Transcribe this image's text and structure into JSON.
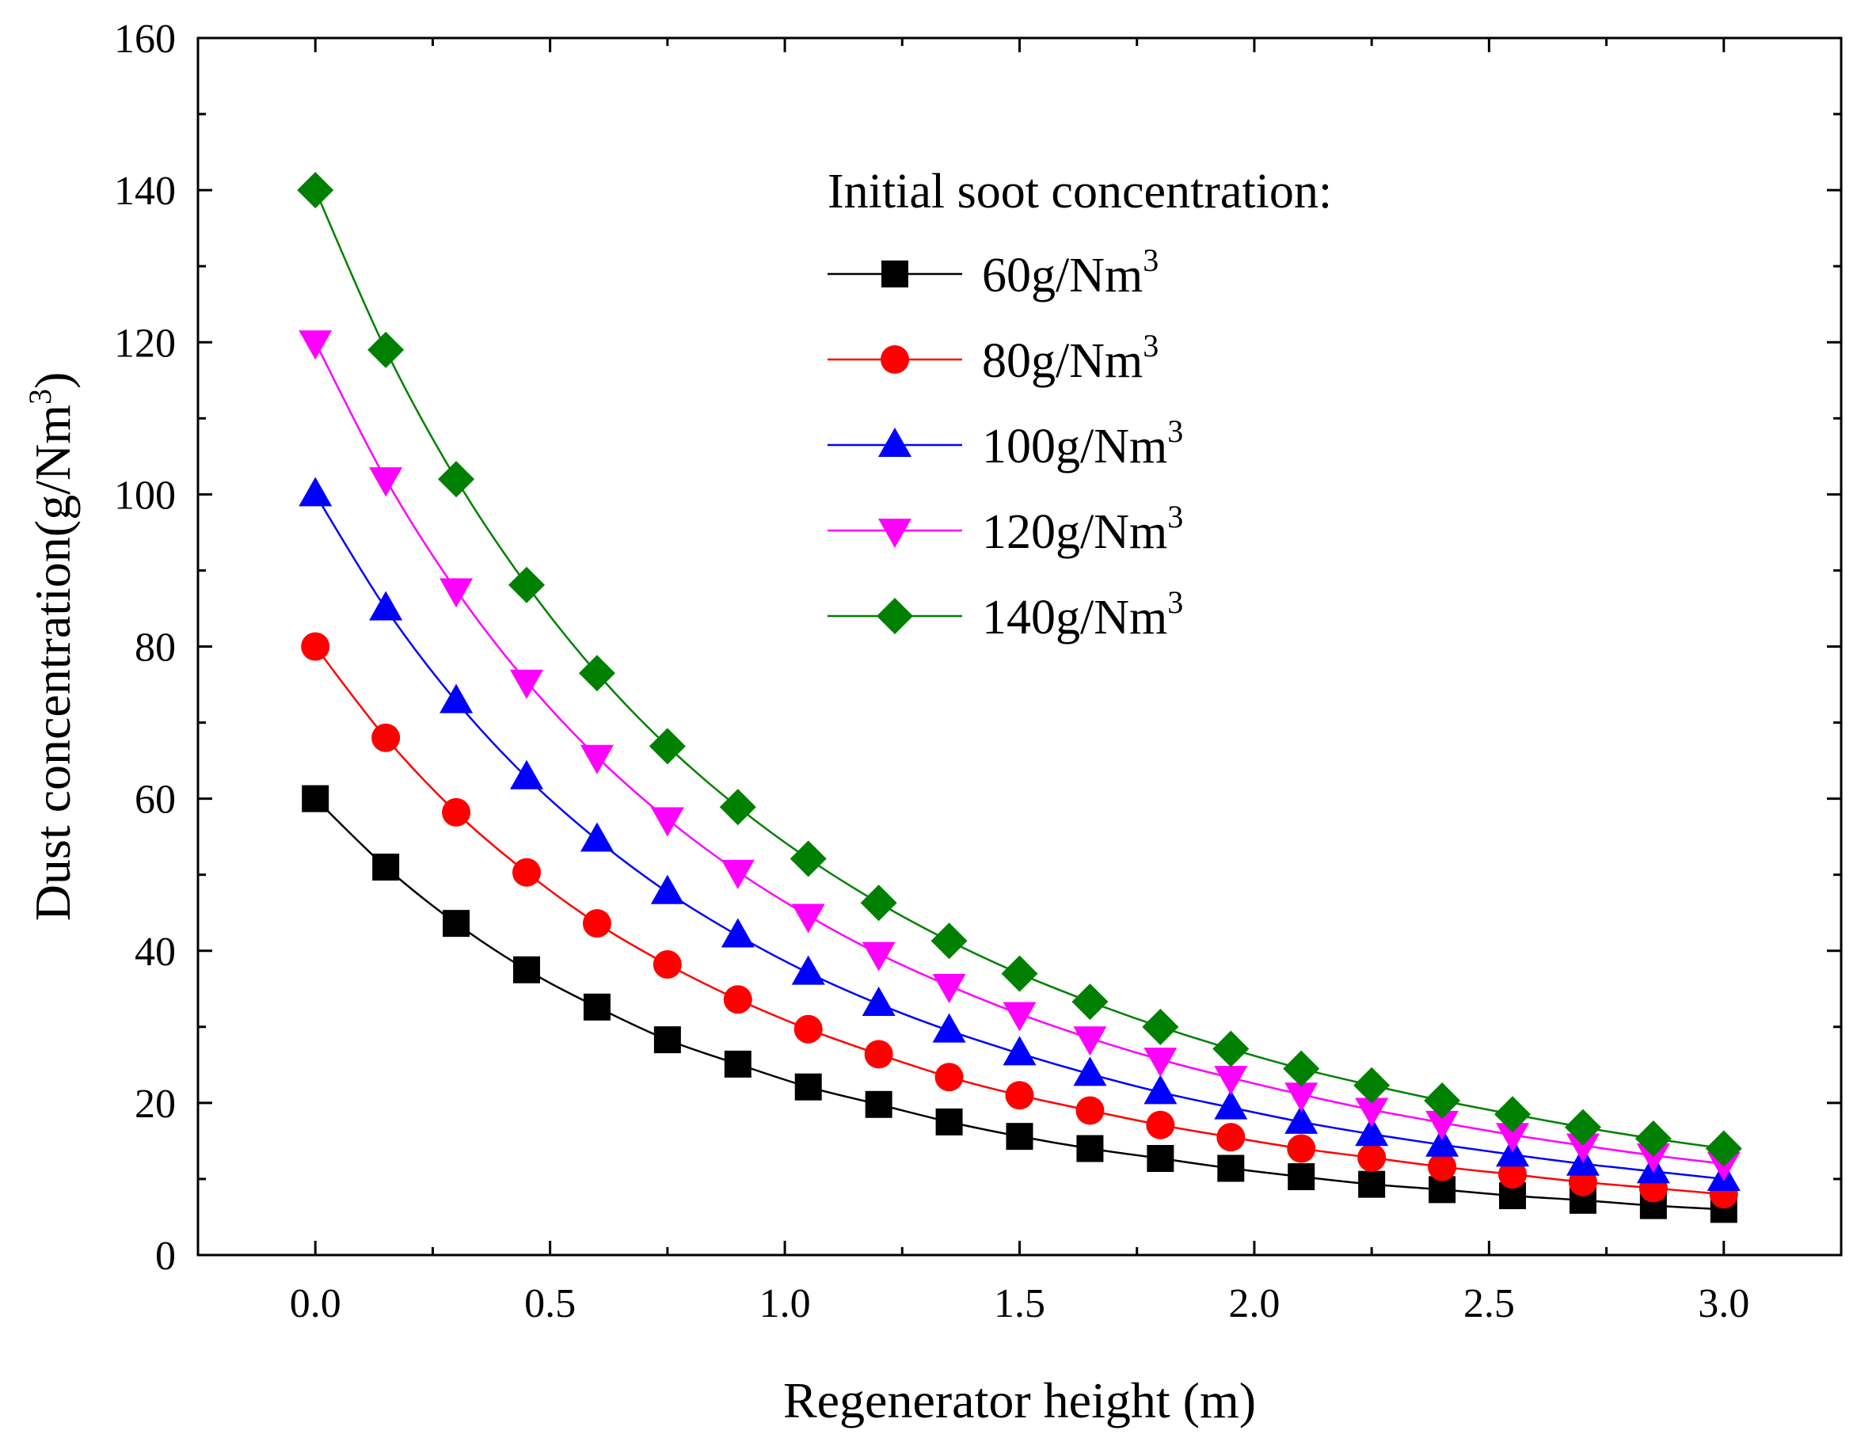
{
  "chart_data": {
    "type": "line",
    "title": "",
    "xlabel": "Regenerator height (m)",
    "ylabel_main": "Dust concentration(g/Nm",
    "ylabel_sup": "3",
    "ylabel_end": ")",
    "xlim": [
      -0.25,
      3.25
    ],
    "ylim": [
      0,
      160
    ],
    "x_ticks": [
      "0.0",
      "0.5",
      "1.0",
      "1.5",
      "2.0",
      "2.5",
      "3.0"
    ],
    "x_tick_values": [
      0,
      0.5,
      1.0,
      1.5,
      2.0,
      2.5,
      3.0
    ],
    "y_ticks": [
      "0",
      "20",
      "40",
      "60",
      "80",
      "100",
      "120",
      "140",
      "160"
    ],
    "y_tick_values": [
      0,
      20,
      40,
      60,
      80,
      100,
      120,
      140,
      160
    ],
    "x": [
      0,
      0.15,
      0.3,
      0.45,
      0.6,
      0.75,
      0.9,
      1.05,
      1.2,
      1.35,
      1.5,
      1.65,
      1.8,
      1.95,
      2.1,
      2.25,
      2.4,
      2.55,
      2.7,
      2.85,
      3.0
    ],
    "legend_title": "Initial soot concentration:",
    "legend_position": "top-right",
    "series": [
      {
        "name": "60g/Nm",
        "sup": "3",
        "color": "#000000",
        "marker": "square",
        "values": [
          60,
          51,
          43.6,
          37.5,
          32.6,
          28.3,
          25.1,
          22.1,
          19.8,
          17.5,
          15.6,
          14.0,
          12.7,
          11.4,
          10.3,
          9.3,
          8.6,
          7.8,
          7.2,
          6.5,
          6.0
        ]
      },
      {
        "name": "80g/Nm",
        "sup": "3",
        "color": "#ff0000",
        "marker": "circle",
        "values": [
          80,
          68,
          58.2,
          50.3,
          43.6,
          38.2,
          33.6,
          29.7,
          26.4,
          23.4,
          21.0,
          19.0,
          17.1,
          15.5,
          14.0,
          12.8,
          11.6,
          10.6,
          9.6,
          8.8,
          8.0
        ]
      },
      {
        "name": "100g/Nm",
        "sup": "3",
        "color": "#0000ff",
        "marker": "triangle-up",
        "values": [
          100,
          85,
          72.8,
          62.8,
          54.6,
          47.7,
          42.0,
          37.1,
          33.0,
          29.5,
          26.5,
          23.8,
          21.4,
          19.4,
          17.5,
          15.9,
          14.5,
          13.2,
          12.0,
          11.0,
          10.0
        ]
      },
      {
        "name": "120g/Nm",
        "sup": "3",
        "color": "#ff00ff",
        "marker": "triangle-down",
        "values": [
          120,
          102,
          87.4,
          75.4,
          65.5,
          57.3,
          50.4,
          44.6,
          39.6,
          35.4,
          31.7,
          28.5,
          25.7,
          23.3,
          21.1,
          19.1,
          17.4,
          15.8,
          14.4,
          13.1,
          12.0
        ]
      },
      {
        "name": "140g/Nm",
        "sup": "3",
        "color": "#008000",
        "marker": "diamond",
        "values": [
          140,
          119,
          102,
          88.1,
          76.5,
          66.9,
          58.9,
          52.1,
          46.3,
          41.3,
          37.0,
          33.3,
          30.0,
          27.1,
          24.5,
          22.3,
          20.3,
          18.5,
          16.8,
          15.3,
          14.0
        ]
      }
    ]
  }
}
